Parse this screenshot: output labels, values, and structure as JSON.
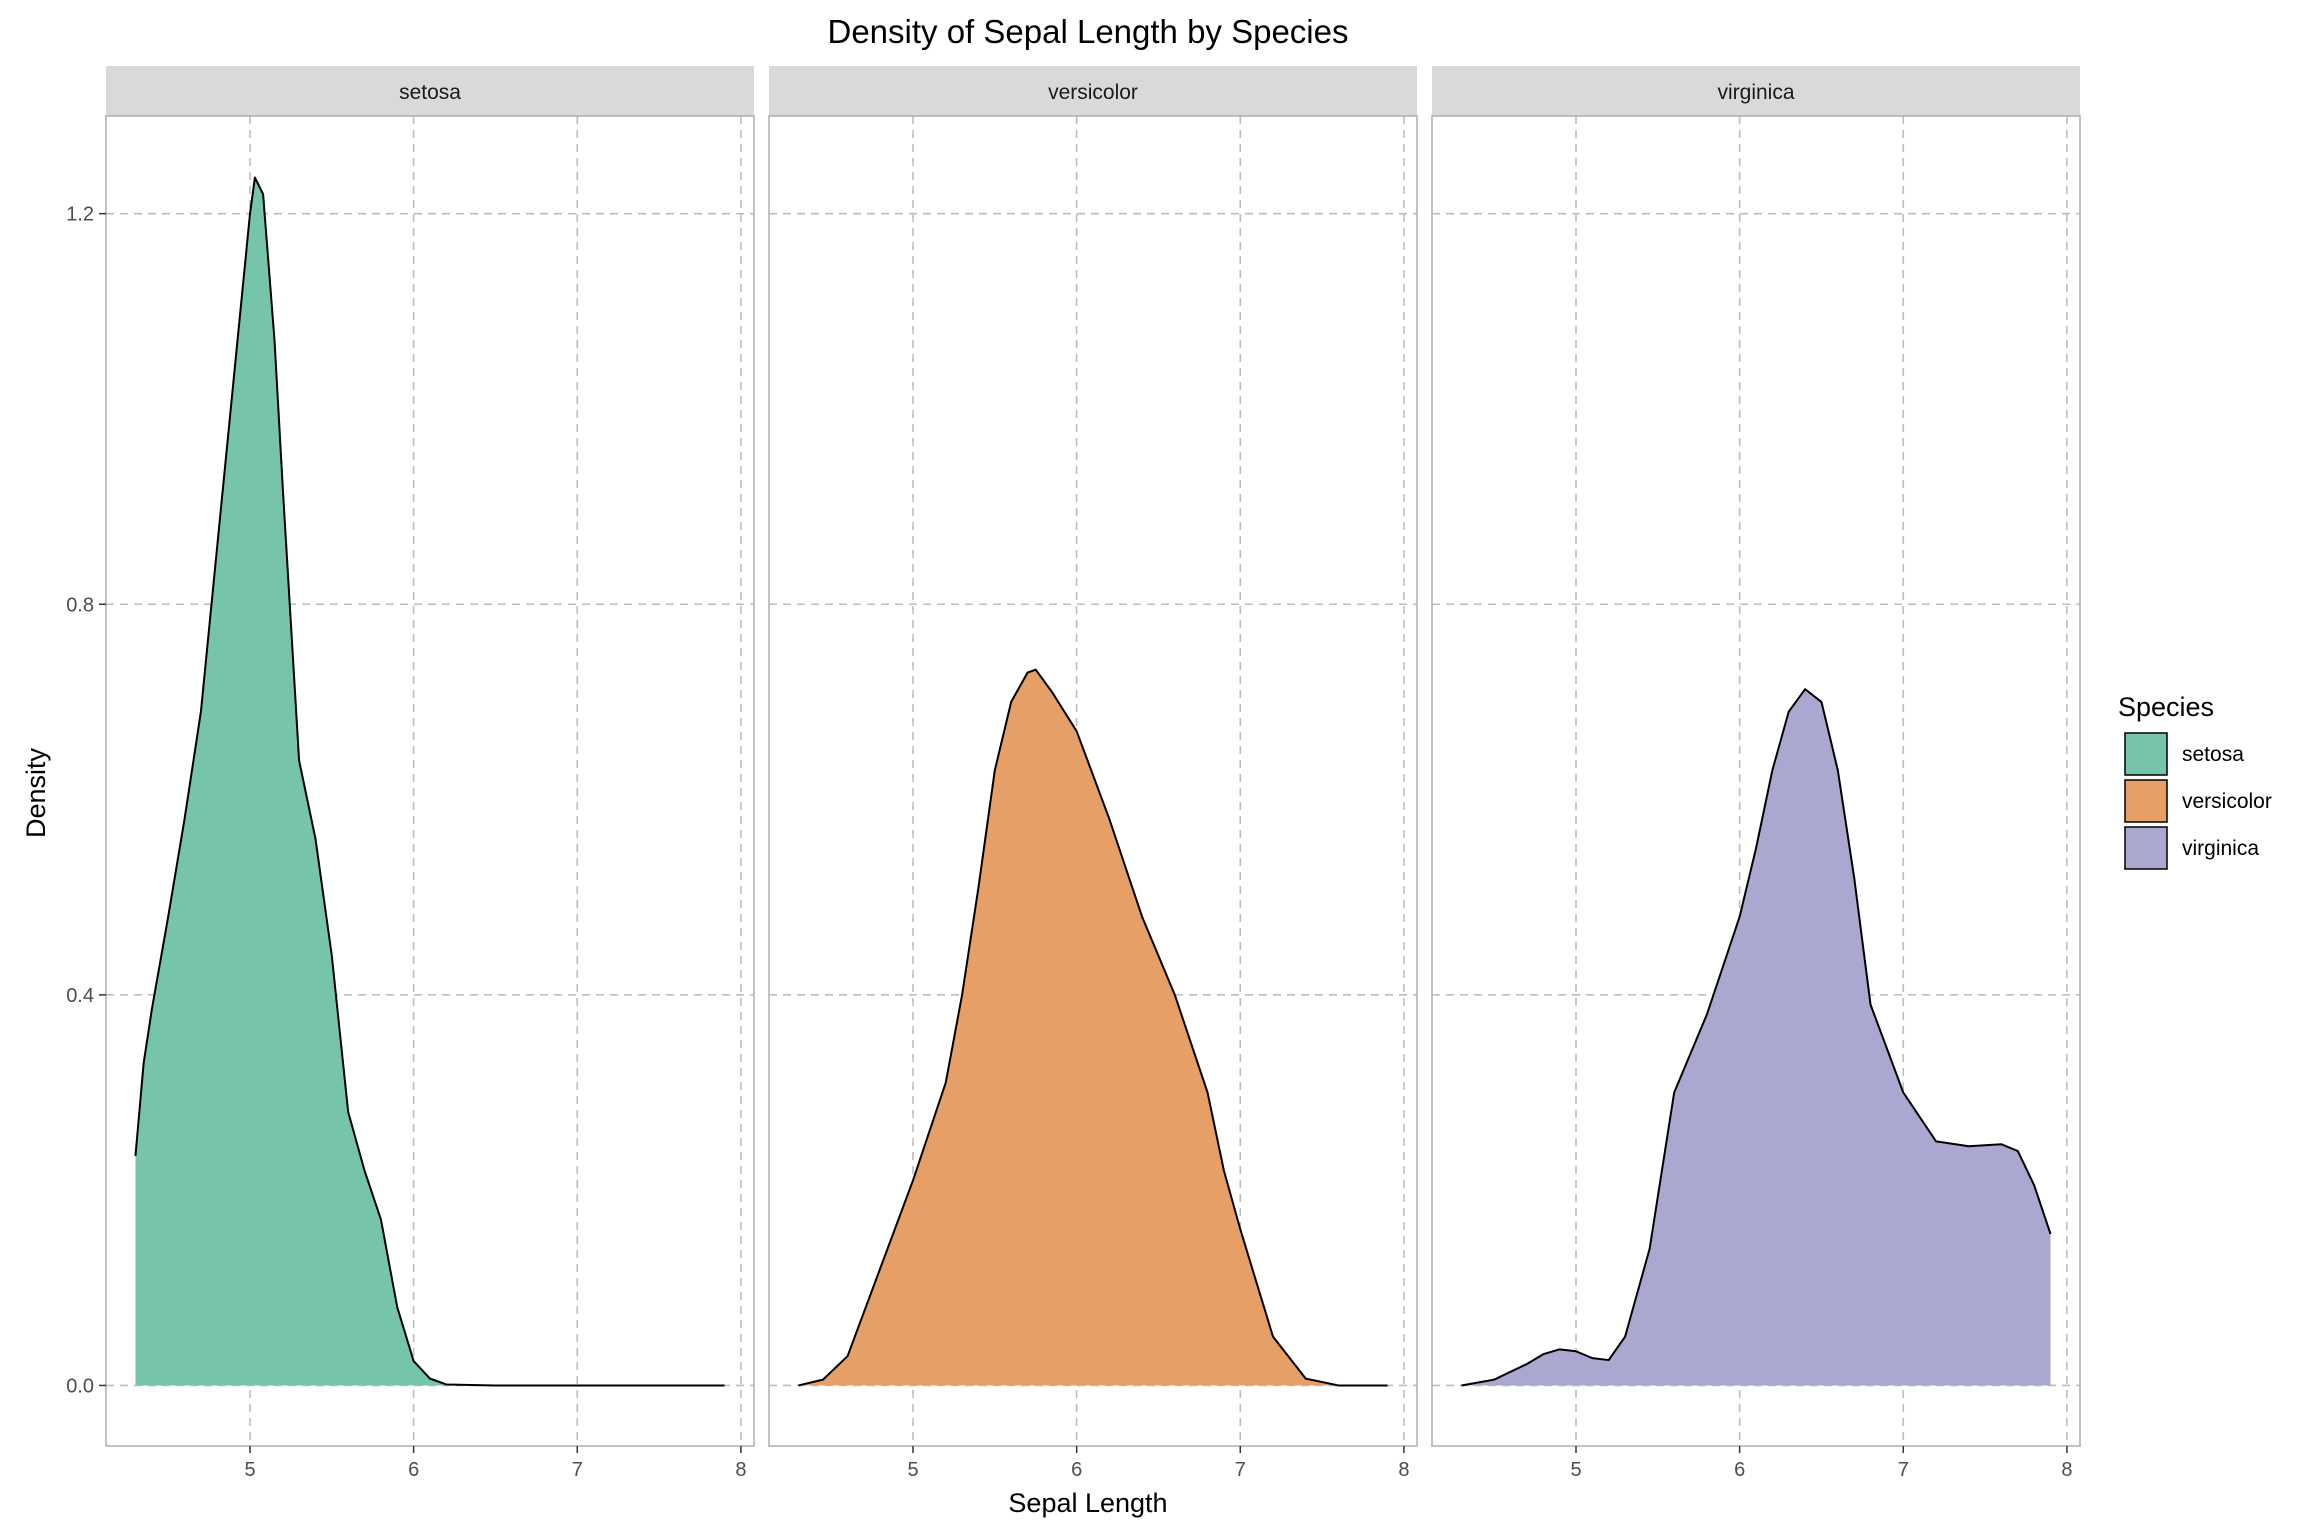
{
  "chart_data": {
    "type": "area",
    "title": "Density of Sepal Length by Species",
    "xlabel": "Sepal Length",
    "ylabel": "Density",
    "xlim": [
      4.12,
      8.08
    ],
    "ylim": [
      -0.062,
      1.3
    ],
    "x_ticks": [
      "5",
      "6",
      "7",
      "8"
    ],
    "y_ticks": [
      "0.0",
      "0.4",
      "0.8",
      "1.2"
    ],
    "grid": true,
    "legend": {
      "title": "Species",
      "position": "right"
    },
    "series": [
      {
        "name": "setosa",
        "color": "#76c4ab",
        "points": [
          [
            4.3,
            0.235
          ],
          [
            4.35,
            0.33
          ],
          [
            4.4,
            0.385
          ],
          [
            4.5,
            0.48
          ],
          [
            4.6,
            0.58
          ],
          [
            4.7,
            0.69
          ],
          [
            4.8,
            0.86
          ],
          [
            4.9,
            1.03
          ],
          [
            5.0,
            1.2
          ],
          [
            5.03,
            1.237
          ],
          [
            5.08,
            1.22
          ],
          [
            5.15,
            1.07
          ],
          [
            5.2,
            0.92
          ],
          [
            5.3,
            0.64
          ],
          [
            5.4,
            0.56
          ],
          [
            5.5,
            0.44
          ],
          [
            5.6,
            0.28
          ],
          [
            5.7,
            0.22
          ],
          [
            5.8,
            0.17
          ],
          [
            5.9,
            0.08
          ],
          [
            6.0,
            0.025
          ],
          [
            6.1,
            0.007
          ],
          [
            6.2,
            0.001
          ],
          [
            6.5,
            0.0
          ],
          [
            7.0,
            0.0
          ],
          [
            7.9,
            0.0
          ]
        ]
      },
      {
        "name": "versicolor",
        "color": "#e69f66",
        "points": [
          [
            4.3,
            0.0
          ],
          [
            4.45,
            0.006
          ],
          [
            4.6,
            0.03
          ],
          [
            4.8,
            0.12
          ],
          [
            5.0,
            0.21
          ],
          [
            5.2,
            0.31
          ],
          [
            5.3,
            0.4
          ],
          [
            5.4,
            0.51
          ],
          [
            5.5,
            0.63
          ],
          [
            5.6,
            0.7
          ],
          [
            5.7,
            0.73
          ],
          [
            5.75,
            0.733
          ],
          [
            5.85,
            0.71
          ],
          [
            6.0,
            0.67
          ],
          [
            6.2,
            0.58
          ],
          [
            6.4,
            0.48
          ],
          [
            6.6,
            0.4
          ],
          [
            6.8,
            0.3
          ],
          [
            6.9,
            0.22
          ],
          [
            7.0,
            0.16
          ],
          [
            7.2,
            0.05
          ],
          [
            7.4,
            0.007
          ],
          [
            7.6,
            0.0
          ],
          [
            7.9,
            0.0
          ]
        ]
      },
      {
        "name": "virginica",
        "color": "#aaa8d0",
        "points": [
          [
            4.3,
            0.0
          ],
          [
            4.5,
            0.006
          ],
          [
            4.7,
            0.022
          ],
          [
            4.8,
            0.032
          ],
          [
            4.9,
            0.037
          ],
          [
            5.0,
            0.035
          ],
          [
            5.1,
            0.028
          ],
          [
            5.2,
            0.026
          ],
          [
            5.3,
            0.05
          ],
          [
            5.45,
            0.14
          ],
          [
            5.6,
            0.3
          ],
          [
            5.8,
            0.38
          ],
          [
            6.0,
            0.48
          ],
          [
            6.1,
            0.55
          ],
          [
            6.2,
            0.63
          ],
          [
            6.3,
            0.69
          ],
          [
            6.4,
            0.713
          ],
          [
            6.5,
            0.7
          ],
          [
            6.6,
            0.63
          ],
          [
            6.7,
            0.52
          ],
          [
            6.8,
            0.39
          ],
          [
            7.0,
            0.3
          ],
          [
            7.2,
            0.25
          ],
          [
            7.4,
            0.245
          ],
          [
            7.6,
            0.247
          ],
          [
            7.7,
            0.24
          ],
          [
            7.8,
            0.205
          ],
          [
            7.9,
            0.155
          ]
        ]
      }
    ]
  }
}
